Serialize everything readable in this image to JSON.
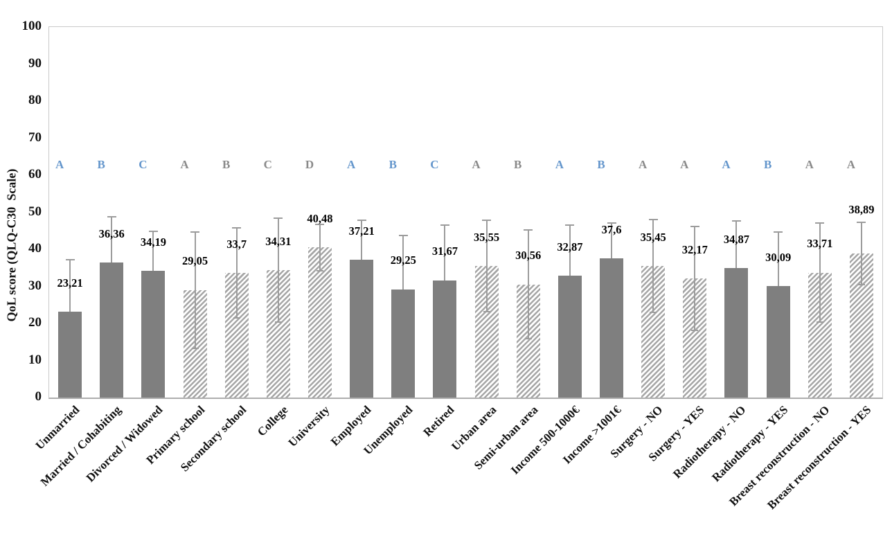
{
  "chart_data": {
    "type": "bar",
    "title": "",
    "xlabel": "",
    "ylabel": "QoL score (QLQ-C30  Scale)",
    "ylim": [
      0,
      100
    ],
    "yticks": [
      0,
      10,
      20,
      30,
      40,
      50,
      60,
      70,
      80,
      90,
      100
    ],
    "grid": false,
    "legend": false,
    "categories": [
      "Unmarried",
      "Married / Cohabiting",
      "Divorced / Widowed",
      "Primary school",
      "Secondary school",
      "College",
      "University",
      "Employed",
      "Unemployed",
      "Retired",
      "Urban area",
      "Semi-urban area",
      "Income 500-1000€",
      "Income >1001€",
      "Surgery - NO",
      "Surgery - YES",
      "Radiotherapy - NO",
      "Radiotherapy - YES",
      "Breast reconstruction - NO",
      "Breast reconstruction - YES"
    ],
    "values": [
      23.21,
      36.36,
      34.19,
      29.05,
      33.7,
      34.31,
      40.48,
      37.21,
      29.25,
      31.67,
      35.55,
      30.56,
      32.87,
      37.6,
      35.45,
      32.17,
      34.87,
      30.09,
      33.71,
      38.89
    ],
    "value_labels": [
      "23,21",
      "36,36",
      "34,19",
      "29,05",
      "33,7",
      "34,31",
      "40,48",
      "37,21",
      "29,25",
      "31,67",
      "35,55",
      "30,56",
      "32,87",
      "37,6",
      "35,45",
      "32,17",
      "34,87",
      "30,09",
      "33,71",
      "38,89"
    ],
    "error_bars": [
      14.2,
      12.6,
      10.8,
      15.9,
      12.3,
      14.2,
      6.4,
      10.8,
      14.7,
      15.0,
      12.5,
      14.8,
      13.8,
      9.7,
      12.7,
      14.2,
      12.9,
      14.7,
      13.6,
      8.6
    ],
    "bar_patterns": [
      "solid",
      "solid",
      "solid",
      "hatch",
      "hatch",
      "hatch",
      "hatch",
      "solid",
      "solid",
      "solid",
      "hatch",
      "hatch",
      "solid",
      "solid",
      "hatch",
      "hatch",
      "solid",
      "solid",
      "hatch",
      "hatch"
    ],
    "significance_letters": [
      "A",
      "B",
      "C",
      "A",
      "B",
      "C",
      "D",
      "A",
      "B",
      "C",
      "A",
      "B",
      "A",
      "B",
      "A",
      "A",
      "A",
      "B",
      "A",
      "A"
    ],
    "letter_colors": [
      "blue",
      "blue",
      "blue",
      "gray",
      "gray",
      "gray",
      "gray",
      "blue",
      "blue",
      "blue",
      "gray",
      "gray",
      "blue",
      "blue",
      "gray",
      "gray",
      "blue",
      "blue",
      "gray",
      "gray"
    ],
    "colors": {
      "solid_bar": "#7F7F7F",
      "hatch_stripe": "#A6A6A6",
      "error_bar": "#9C9C9C",
      "letter_blue": "#6496CC",
      "letter_gray": "#8A8A8A",
      "axis_line": "#ADADAD",
      "label_text": "#000000"
    }
  }
}
